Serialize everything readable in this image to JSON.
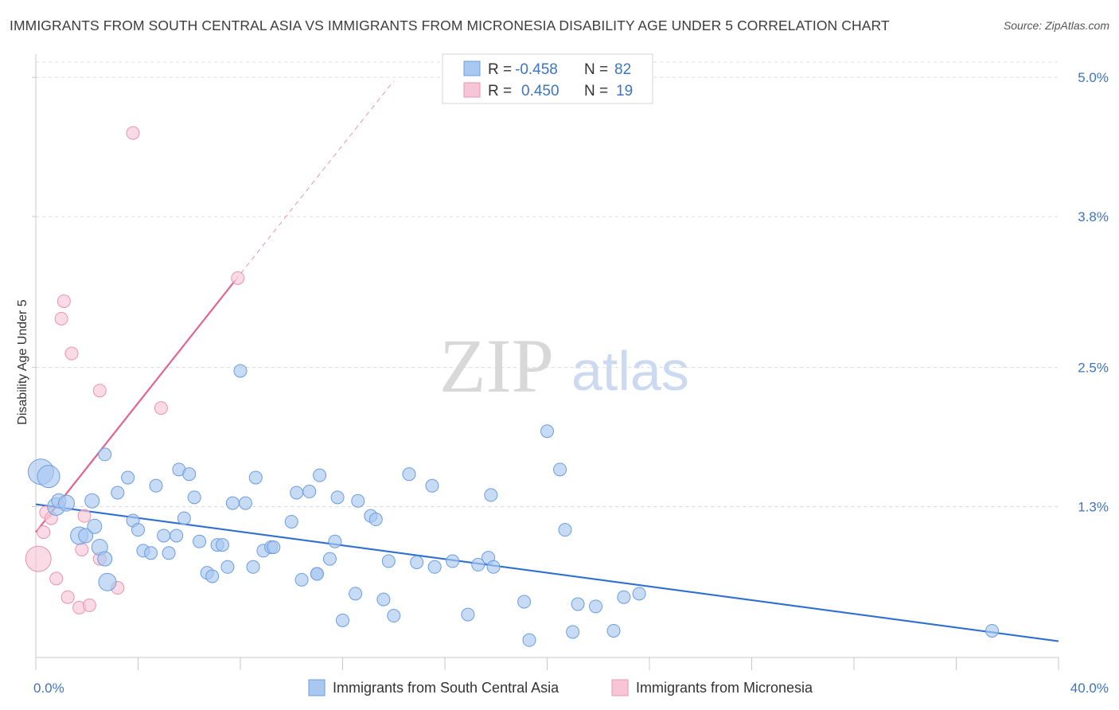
{
  "title": "IMMIGRANTS FROM SOUTH CENTRAL ASIA VS IMMIGRANTS FROM MICRONESIA DISABILITY AGE UNDER 5 CORRELATION CHART",
  "source": "Source: ZipAtlas.com",
  "watermark": {
    "zip": "ZIP",
    "atlas": "atlas"
  },
  "colors": {
    "blue_fill": "#a9c8f0",
    "blue_stroke": "#6a9de0",
    "blue_line": "#2f6fd0",
    "pink_fill": "#f7c6d6",
    "pink_stroke": "#e994b0",
    "pink_line": "#e0648e",
    "tick_text": "#3d74c4",
    "grid": "#dcdcdc"
  },
  "stats": [
    {
      "r_label": "R =",
      "r_value": "-0.458",
      "n_label": "N =",
      "n_value": "82"
    },
    {
      "r_label": "R =",
      "r_value": "0.450",
      "n_label": "N =",
      "n_value": "19"
    }
  ],
  "legend": [
    {
      "label": "Immigrants from South Central Asia"
    },
    {
      "label": "Immigrants from Micronesia"
    }
  ],
  "chart_data": {
    "type": "scatter",
    "xlabel": "",
    "ylabel": "Disability Age Under 5",
    "xlim": [
      0,
      40
    ],
    "ylim": [
      0,
      5.2
    ],
    "x_ticks": [
      0,
      4,
      8,
      12,
      16,
      20,
      24,
      28,
      32,
      36,
      40
    ],
    "x_tick_labels": [
      {
        "value": 0,
        "label": "0.0%"
      },
      {
        "value": 40,
        "label": "40.0%"
      }
    ],
    "y_ticks": [
      {
        "value": 1.3,
        "label": "1.3%"
      },
      {
        "value": 2.5,
        "label": "2.5%"
      },
      {
        "value": 3.8,
        "label": "3.8%"
      },
      {
        "value": 5.0,
        "label": "5.0%"
      }
    ],
    "grid": true,
    "series": [
      {
        "name": "Immigrants from South Central Asia",
        "color": "#a9c8f0",
        "trend": {
          "x": [
            0,
            40
          ],
          "y": [
            1.32,
            0.14
          ]
        },
        "points": [
          [
            0.2,
            1.6,
            16
          ],
          [
            0.5,
            1.56,
            14
          ],
          [
            0.8,
            1.3,
            11
          ],
          [
            0.9,
            1.35,
            9
          ],
          [
            1.2,
            1.33,
            10
          ],
          [
            1.7,
            1.05,
            11
          ],
          [
            1.95,
            1.05,
            9
          ],
          [
            2.2,
            1.35,
            9
          ],
          [
            2.3,
            1.13,
            9
          ],
          [
            2.5,
            0.95,
            10
          ],
          [
            2.7,
            0.85,
            9
          ],
          [
            2.8,
            0.65,
            11
          ],
          [
            2.7,
            1.75,
            8
          ],
          [
            3.2,
            1.42,
            8
          ],
          [
            3.6,
            1.55,
            8
          ],
          [
            3.8,
            1.18,
            8
          ],
          [
            4.0,
            1.1,
            8
          ],
          [
            4.2,
            0.92,
            8
          ],
          [
            4.5,
            0.9,
            8
          ],
          [
            4.7,
            1.48,
            8
          ],
          [
            5.0,
            1.05,
            8
          ],
          [
            5.2,
            0.9,
            8
          ],
          [
            5.5,
            1.05,
            8
          ],
          [
            5.6,
            1.62,
            8
          ],
          [
            6.0,
            1.58,
            8
          ],
          [
            5.8,
            1.2,
            8
          ],
          [
            6.2,
            1.38,
            8
          ],
          [
            6.4,
            1.0,
            8
          ],
          [
            6.7,
            0.73,
            8
          ],
          [
            6.9,
            0.7,
            8
          ],
          [
            7.1,
            0.97,
            8
          ],
          [
            7.3,
            0.97,
            8
          ],
          [
            7.5,
            0.78,
            8
          ],
          [
            7.7,
            1.33,
            8
          ],
          [
            8.0,
            2.47,
            8
          ],
          [
            8.2,
            1.33,
            8
          ],
          [
            8.5,
            0.78,
            8
          ],
          [
            8.6,
            1.55,
            8
          ],
          [
            8.9,
            0.92,
            8
          ],
          [
            9.2,
            0.95,
            8
          ],
          [
            9.3,
            0.95,
            8
          ],
          [
            10.0,
            1.17,
            8
          ],
          [
            10.2,
            1.42,
            8
          ],
          [
            10.4,
            0.67,
            8
          ],
          [
            10.7,
            1.43,
            8
          ],
          [
            11.0,
            0.72,
            8
          ],
          [
            11.0,
            0.72,
            8
          ],
          [
            11.1,
            1.57,
            8
          ],
          [
            11.5,
            0.85,
            8
          ],
          [
            11.7,
            1.0,
            8
          ],
          [
            11.8,
            1.38,
            8
          ],
          [
            12.0,
            0.32,
            8
          ],
          [
            12.6,
            1.35,
            8
          ],
          [
            12.5,
            0.55,
            8
          ],
          [
            13.1,
            1.22,
            8
          ],
          [
            13.3,
            1.19,
            8
          ],
          [
            13.6,
            0.5,
            8
          ],
          [
            13.8,
            0.83,
            8
          ],
          [
            14.0,
            0.36,
            8
          ],
          [
            14.6,
            1.58,
            8
          ],
          [
            14.9,
            0.82,
            8
          ],
          [
            15.5,
            1.48,
            8
          ],
          [
            15.6,
            0.78,
            8
          ],
          [
            16.3,
            0.83,
            8
          ],
          [
            16.9,
            0.37,
            8
          ],
          [
            17.3,
            0.8,
            8
          ],
          [
            17.7,
            0.86,
            8
          ],
          [
            17.8,
            1.4,
            8
          ],
          [
            17.9,
            0.78,
            8
          ],
          [
            19.1,
            0.48,
            8
          ],
          [
            19.3,
            0.15,
            8
          ],
          [
            20.0,
            1.95,
            8
          ],
          [
            20.5,
            1.62,
            8
          ],
          [
            20.7,
            1.1,
            8
          ],
          [
            21.0,
            0.22,
            8
          ],
          [
            21.2,
            0.46,
            8
          ],
          [
            21.9,
            0.44,
            8
          ],
          [
            22.6,
            0.23,
            8
          ],
          [
            23.0,
            0.52,
            8
          ],
          [
            23.6,
            0.55,
            8
          ],
          [
            37.4,
            0.23,
            8
          ]
        ]
      },
      {
        "name": "Immigrants from Micronesia",
        "color": "#f7c6d6",
        "trend": {
          "x": [
            0,
            7.8
          ],
          "y": [
            1.08,
            3.25
          ],
          "dashed_to": {
            "x": 14.0,
            "y": 4.97
          }
        },
        "points": [
          [
            0.1,
            0.85,
            16
          ],
          [
            0.3,
            1.08,
            8
          ],
          [
            0.4,
            1.25,
            8
          ],
          [
            0.6,
            1.2,
            8
          ],
          [
            0.8,
            0.68,
            8
          ],
          [
            1.0,
            2.92,
            8
          ],
          [
            1.1,
            3.07,
            8
          ],
          [
            1.25,
            0.52,
            8
          ],
          [
            1.4,
            2.62,
            8
          ],
          [
            1.7,
            0.43,
            8
          ],
          [
            1.8,
            0.93,
            8
          ],
          [
            1.9,
            1.22,
            8
          ],
          [
            2.1,
            0.45,
            8
          ],
          [
            2.5,
            0.85,
            8
          ],
          [
            2.5,
            2.3,
            8
          ],
          [
            3.2,
            0.6,
            8
          ],
          [
            3.8,
            4.52,
            8
          ],
          [
            4.9,
            2.15,
            8
          ],
          [
            7.9,
            3.27,
            8
          ]
        ]
      }
    ]
  }
}
